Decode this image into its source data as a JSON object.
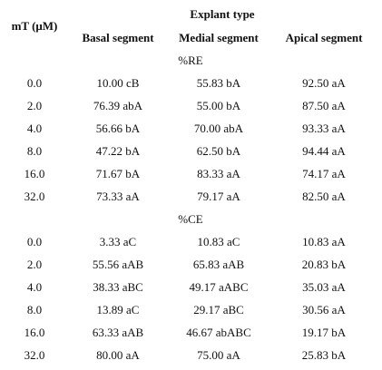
{
  "header": {
    "row_label": "mT (μM)",
    "group_label": "Explant type",
    "columns": [
      "Basal segment",
      "Medial segment",
      "Apical segment"
    ]
  },
  "sections": [
    {
      "label": "%RE",
      "rows": [
        [
          "0.0",
          "10.00 cB",
          "55.83 bA",
          "92.50 aA"
        ],
        [
          "2.0",
          "76.39 abA",
          "55.00 bA",
          "87.50 aA"
        ],
        [
          "4.0",
          "56.66 bA",
          "70.00 abA",
          "93.33 aA"
        ],
        [
          "8.0",
          "47.22 bA",
          "62.50 bA",
          "94.44 aA"
        ],
        [
          "16.0",
          "71.67 bA",
          "83.33 aA",
          "74.17 aA"
        ],
        [
          "32.0",
          "73.33 aA",
          "79.17 aA",
          "82.50 aA"
        ]
      ]
    },
    {
      "label": "%CE",
      "rows": [
        [
          "0.0",
          "3.33 aC",
          "10.83 aC",
          "10.83 aA"
        ],
        [
          "2.0",
          "55.56 aAB",
          "65.83 aAB",
          "20.83 bA"
        ],
        [
          "4.0",
          "38.33 aBC",
          "49.17 aABC",
          "35.03 aA"
        ],
        [
          "8.0",
          "13.89 aC",
          "29.17 aBC",
          "30.56 aA"
        ],
        [
          "16.0",
          "63.33 aAB",
          "46.67 abABC",
          "19.17 bA"
        ],
        [
          "32.0",
          "80.00 aA",
          "75.00 aA",
          "25.83 bA"
        ]
      ]
    }
  ]
}
